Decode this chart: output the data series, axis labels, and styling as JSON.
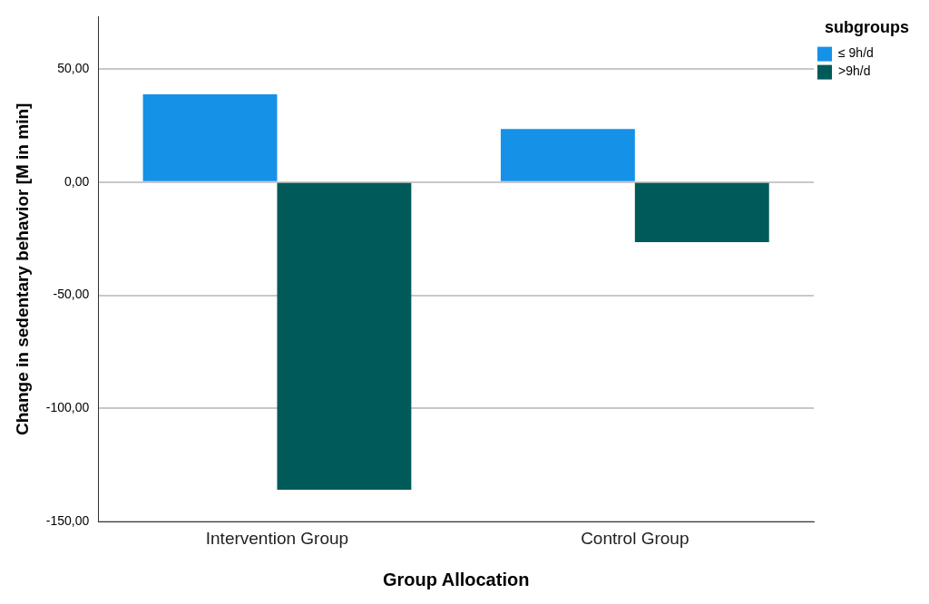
{
  "chart_data": {
    "type": "bar",
    "xlabel": "Group Allocation",
    "ylabel": "Change in sedentary behavior [M in min]",
    "legend_title": "subgroups",
    "categories": [
      "Intervention Group",
      "Control Group"
    ],
    "series": [
      {
        "name": "≤ 9h/d",
        "color": "#1591e8",
        "values": [
          38.7,
          23.4
        ]
      },
      {
        "name": ">9h/d",
        "color": "#005a5a",
        "values": [
          -135.9,
          -26.6
        ]
      }
    ],
    "ylim": [
      -150,
      73
    ],
    "yticks": [
      {
        "value": -150,
        "label": "-150,00"
      },
      {
        "value": -100,
        "label": "-100,00"
      },
      {
        "value": -50,
        "label": "-50,00"
      },
      {
        "value": 0,
        "label": "0,00"
      },
      {
        "value": 50,
        "label": "50,00"
      }
    ],
    "grid": "y",
    "legend": "top right"
  }
}
